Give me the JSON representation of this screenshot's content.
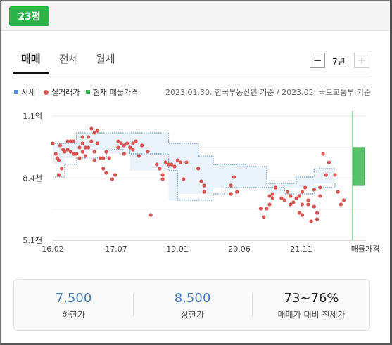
{
  "badge": {
    "label": "23평"
  },
  "tabs": [
    "매매",
    "전세",
    "월세"
  ],
  "period": {
    "minus": "−",
    "label": "7년",
    "plus": "+"
  },
  "legend": {
    "market": "시세",
    "market_color": "#5b8fd6",
    "deals": "실거래가",
    "deals_color": "#d9534f",
    "listings": "현재 매물가격",
    "listings_color": "#2db34a"
  },
  "source_note": "2023.01.30. 한국부동산원 기준 / 2023.02. 국토교통부 기준",
  "chart_data": {
    "type": "scatter",
    "y_tick_labels": [
      "1.1억",
      "8.4천",
      "5.1천"
    ],
    "x_tick_labels": [
      "16.02",
      "17.07",
      "19.01",
      "20.06",
      "21.11",
      "매물가격"
    ],
    "ylim": [
      5100,
      11000
    ],
    "series": [
      {
        "name": "시세",
        "upper": [
          [
            0,
            9700
          ],
          [
            4,
            9700
          ],
          [
            8,
            10200
          ],
          [
            26,
            10200
          ],
          [
            39,
            9700
          ],
          [
            49,
            9100
          ],
          [
            54,
            8700
          ],
          [
            65,
            8600
          ],
          [
            72,
            7800
          ],
          [
            78,
            7800
          ],
          [
            82,
            8100
          ],
          [
            88,
            8500
          ],
          [
            95,
            8500
          ]
        ],
        "lower": [
          [
            0,
            8100
          ],
          [
            4,
            8700
          ],
          [
            8,
            9000
          ],
          [
            18,
            9400
          ],
          [
            26,
            9200
          ],
          [
            39,
            8400
          ],
          [
            42,
            7000
          ],
          [
            54,
            7300
          ],
          [
            58,
            7600
          ],
          [
            72,
            7600
          ],
          [
            78,
            7300
          ],
          [
            88,
            7600
          ],
          [
            95,
            7800
          ]
        ]
      },
      {
        "name": "실거래가",
        "points": [
          [
            0,
            9700
          ],
          [
            1,
            9200
          ],
          [
            1.5,
            9000
          ],
          [
            2,
            8900
          ],
          [
            2,
            8200
          ],
          [
            2.5,
            9600
          ],
          [
            3,
            8500
          ],
          [
            3.5,
            9400
          ],
          [
            4,
            9300
          ],
          [
            5,
            9800
          ],
          [
            5,
            9400
          ],
          [
            6,
            9800
          ],
          [
            6,
            9300
          ],
          [
            7,
            9800
          ],
          [
            7,
            9200
          ],
          [
            8,
            9200
          ],
          [
            9,
            9500
          ],
          [
            9,
            9000
          ],
          [
            10,
            10000
          ],
          [
            10,
            9700
          ],
          [
            10,
            9300
          ],
          [
            11,
            9500
          ],
          [
            11,
            9100
          ],
          [
            12,
            10000
          ],
          [
            12,
            9500
          ],
          [
            13,
            10400
          ],
          [
            13,
            9800
          ],
          [
            14,
            10200
          ],
          [
            14,
            9300
          ],
          [
            14,
            8900
          ],
          [
            15,
            10300
          ],
          [
            15,
            9700
          ],
          [
            16,
            9000
          ],
          [
            17,
            8500
          ],
          [
            17,
            9000
          ],
          [
            18,
            9300
          ],
          [
            18,
            8300
          ],
          [
            19,
            9000
          ],
          [
            20,
            8000
          ],
          [
            21,
            8200
          ],
          [
            22,
            9800
          ],
          [
            22,
            9500
          ],
          [
            23,
            9700
          ],
          [
            24,
            9600
          ],
          [
            24,
            9200
          ],
          [
            25,
            9700
          ],
          [
            26,
            9500
          ],
          [
            27,
            9700
          ],
          [
            27,
            9400
          ],
          [
            28,
            9800
          ],
          [
            29,
            9100
          ],
          [
            30,
            9600
          ],
          [
            32,
            9300
          ],
          [
            33,
            6300
          ],
          [
            35,
            8700
          ],
          [
            36,
            8500
          ],
          [
            37,
            8200
          ],
          [
            37,
            8000
          ],
          [
            38,
            8800
          ],
          [
            39,
            8700
          ],
          [
            40,
            8700
          ],
          [
            41,
            8600
          ],
          [
            42,
            8900
          ],
          [
            43,
            8800
          ],
          [
            44,
            8000
          ],
          [
            45,
            8800
          ],
          [
            49,
            8500
          ],
          [
            50,
            7900
          ],
          [
            51,
            7700
          ],
          [
            51,
            7400
          ],
          [
            60,
            7700
          ],
          [
            60,
            7300
          ],
          [
            61,
            8100
          ],
          [
            62,
            7400
          ],
          [
            70,
            6600
          ],
          [
            71,
            6200
          ],
          [
            72,
            6600
          ],
          [
            73,
            7200
          ],
          [
            73,
            6800
          ],
          [
            74,
            7100
          ],
          [
            74,
            7300
          ],
          [
            75,
            7600
          ],
          [
            77,
            7100
          ],
          [
            78,
            7000
          ],
          [
            79,
            7400
          ],
          [
            80,
            6800
          ],
          [
            80,
            7200
          ],
          [
            81,
            6900
          ],
          [
            82,
            7100
          ],
          [
            83,
            6400
          ],
          [
            83,
            7200
          ],
          [
            84,
            7400
          ],
          [
            84,
            6800
          ],
          [
            84,
            6300
          ],
          [
            85,
            7600
          ],
          [
            86,
            6800
          ],
          [
            86,
            7000
          ],
          [
            87,
            6000
          ],
          [
            88,
            7500
          ],
          [
            88,
            6700
          ],
          [
            89,
            6400
          ],
          [
            89,
            6100
          ],
          [
            90,
            7200
          ],
          [
            90,
            7600
          ],
          [
            91,
            9200
          ],
          [
            92,
            8200
          ],
          [
            93,
            8800
          ],
          [
            95,
            8200
          ],
          [
            96,
            7400
          ],
          [
            97,
            6800
          ],
          [
            98,
            7000
          ]
        ]
      },
      {
        "name": "현재 매물가격",
        "range": [
          7700,
          9500
        ]
      }
    ]
  },
  "summary": [
    {
      "value": "7,500",
      "label": "하한가"
    },
    {
      "value": "8,500",
      "label": "상한가"
    },
    {
      "value": "73~76%",
      "label": "매매가 대비 전세가"
    }
  ]
}
